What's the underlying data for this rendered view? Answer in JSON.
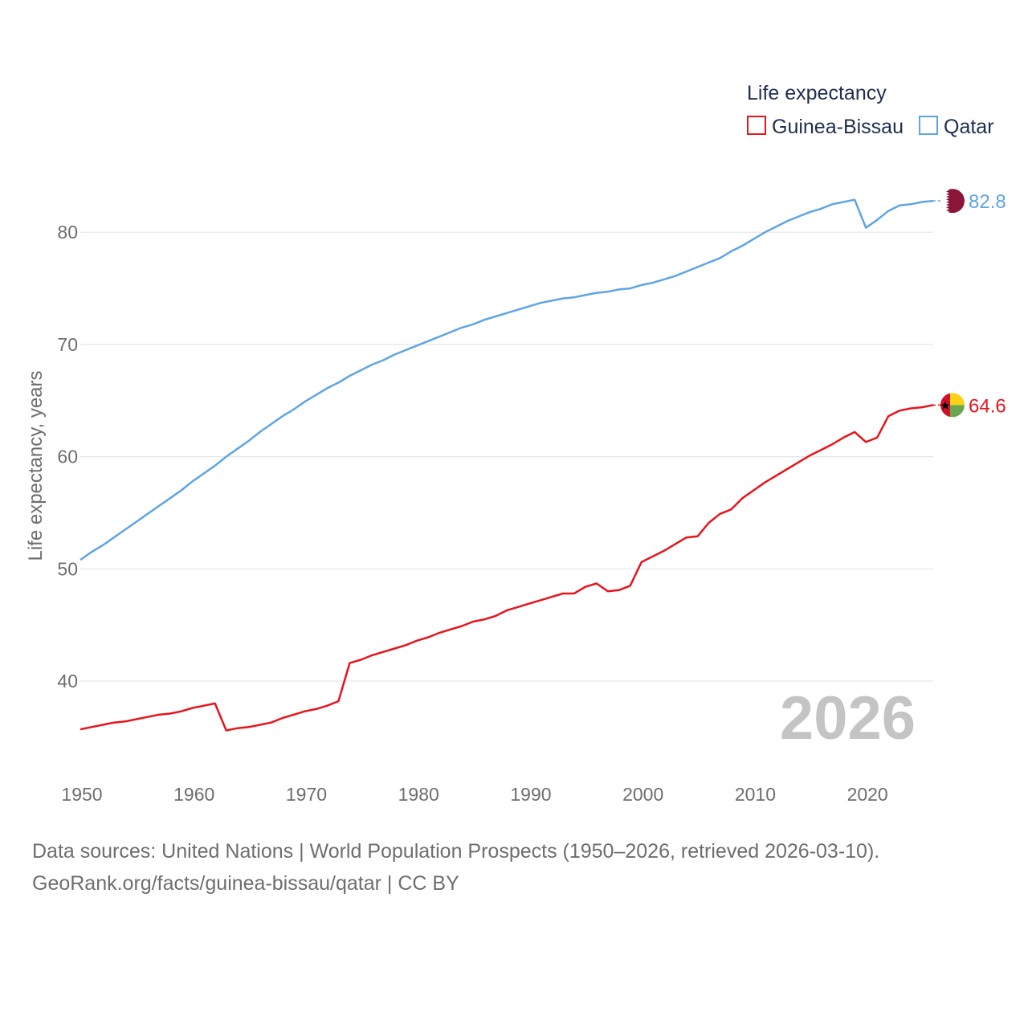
{
  "chart_data": {
    "type": "line",
    "ylabel": "Life expectancy, years",
    "xlim": [
      1950,
      2026
    ],
    "ylim": [
      34,
      85
    ],
    "x_ticks": [
      1950,
      1960,
      1970,
      1980,
      1990,
      2000,
      2010,
      2020
    ],
    "y_ticks": [
      40,
      50,
      60,
      70,
      80
    ],
    "grid": true,
    "legend_title": "Life expectancy",
    "legend_position": "top-right",
    "year_watermark": "2026",
    "x": [
      1950,
      1951,
      1952,
      1953,
      1954,
      1955,
      1956,
      1957,
      1958,
      1959,
      1960,
      1961,
      1962,
      1963,
      1964,
      1965,
      1966,
      1967,
      1968,
      1969,
      1970,
      1971,
      1972,
      1973,
      1974,
      1975,
      1976,
      1977,
      1978,
      1979,
      1980,
      1981,
      1982,
      1983,
      1984,
      1985,
      1986,
      1987,
      1988,
      1989,
      1990,
      1991,
      1992,
      1993,
      1994,
      1995,
      1996,
      1997,
      1998,
      1999,
      2000,
      2001,
      2002,
      2003,
      2004,
      2005,
      2006,
      2007,
      2008,
      2009,
      2010,
      2011,
      2012,
      2013,
      2014,
      2015,
      2016,
      2017,
      2018,
      2019,
      2020,
      2021,
      2022,
      2023,
      2024,
      2025,
      2026
    ],
    "series": [
      {
        "name": "Guinea-Bissau",
        "color": "#e8141c",
        "end_label": "64.6",
        "values": [
          35.7,
          35.9,
          36.1,
          36.3,
          36.4,
          36.6,
          36.8,
          37.0,
          37.1,
          37.3,
          37.6,
          37.8,
          38.0,
          35.6,
          35.8,
          35.9,
          36.1,
          36.3,
          36.7,
          37.0,
          37.3,
          37.5,
          37.8,
          38.2,
          41.6,
          41.9,
          42.3,
          42.6,
          42.9,
          43.2,
          43.6,
          43.9,
          44.3,
          44.6,
          44.9,
          45.3,
          45.5,
          45.8,
          46.3,
          46.6,
          46.9,
          47.2,
          47.5,
          47.8,
          47.8,
          48.4,
          48.7,
          48.0,
          48.1,
          48.5,
          50.6,
          51.1,
          51.6,
          52.2,
          52.8,
          52.9,
          54.1,
          54.9,
          55.3,
          56.3,
          57.0,
          57.7,
          58.3,
          58.9,
          59.5,
          60.1,
          60.6,
          61.1,
          61.7,
          62.2,
          61.3,
          61.7,
          63.6,
          64.1,
          64.3,
          64.4,
          64.6
        ]
      },
      {
        "name": "Qatar",
        "color": "#5ea5e5",
        "end_label": "82.8",
        "values": [
          50.8,
          51.5,
          52.1,
          52.8,
          53.5,
          54.2,
          54.9,
          55.6,
          56.3,
          57.0,
          57.8,
          58.5,
          59.2,
          60.0,
          60.7,
          61.4,
          62.2,
          62.9,
          63.6,
          64.2,
          64.9,
          65.5,
          66.1,
          66.6,
          67.2,
          67.7,
          68.2,
          68.6,
          69.1,
          69.5,
          69.9,
          70.3,
          70.7,
          71.1,
          71.5,
          71.8,
          72.2,
          72.5,
          72.8,
          73.1,
          73.4,
          73.7,
          73.9,
          74.1,
          74.2,
          74.4,
          74.6,
          74.7,
          74.9,
          75.0,
          75.3,
          75.5,
          75.8,
          76.1,
          76.5,
          76.9,
          77.3,
          77.7,
          78.3,
          78.8,
          79.4,
          80.0,
          80.5,
          81.0,
          81.4,
          81.8,
          82.1,
          82.5,
          82.7,
          82.9,
          80.4,
          81.1,
          81.9,
          82.4,
          82.5,
          82.7,
          82.8
        ]
      }
    ]
  },
  "source": {
    "line1": "Data sources: United Nations | World Population Prospects (1950–2026, retrieved 2026-03-10).",
    "line2": "GeoRank.org/facts/guinea-bissau/qatar | CC BY"
  }
}
